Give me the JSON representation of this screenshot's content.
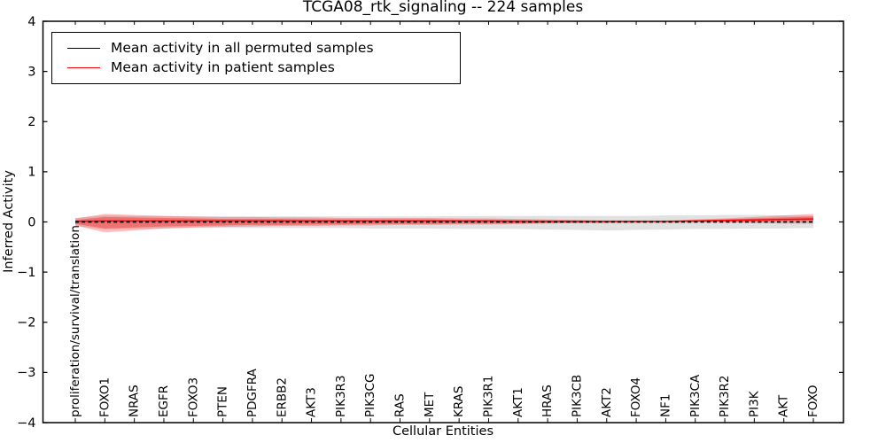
{
  "chart_data": {
    "type": "line",
    "title": "TCGA08_rtk_signaling -- 224 samples",
    "xlabel": "Cellular Entities",
    "ylabel": "Inferred Activity",
    "ylim": [
      -4,
      4
    ],
    "yticks": [
      4,
      3,
      2,
      1,
      0,
      -1,
      -2,
      -3,
      -4
    ],
    "grid": false,
    "legend": {
      "position": "upper left",
      "entries": [
        {
          "label": "Mean activity in all permuted samples",
          "color": "#000000"
        },
        {
          "label": "Mean activity in patient samples",
          "color": "#ff0000"
        }
      ]
    },
    "categories": [
      "proliferation/survival/translation",
      "FOXO1",
      "NRAS",
      "EGFR",
      "FOXO3",
      "PTEN",
      "PDGFRA",
      "ERBB2",
      "AKT3",
      "PIK3R3",
      "PIK3CG",
      "RAS",
      "MET",
      "KRAS",
      "PIK3R1",
      "AKT1",
      "HRAS",
      "PIK3CB",
      "AKT2",
      "FOXO4",
      "NF1",
      "PIK3CA",
      "PIK3R2",
      "PI3K",
      "AKT",
      "FOXO"
    ],
    "series": [
      {
        "name": "Mean activity in all permuted samples",
        "color": "#000000",
        "style": "dashed",
        "values": [
          0,
          0,
          0,
          0,
          0,
          0,
          0,
          0,
          0,
          0,
          0,
          0,
          0,
          0,
          0,
          0,
          0,
          0,
          0,
          0,
          0,
          0,
          0,
          0,
          0,
          0
        ]
      },
      {
        "name": "Mean activity in patient samples",
        "color": "#ff0000",
        "style": "solid",
        "values": [
          0.01,
          0.02,
          0.02,
          0.02,
          0.02,
          0.02,
          0.02,
          0.02,
          0.02,
          0.02,
          0.02,
          0.02,
          0.02,
          0.02,
          0.02,
          0.01,
          0.01,
          0.01,
          0.01,
          0.01,
          0.01,
          0.02,
          0.03,
          0.04,
          0.05,
          0.06
        ]
      }
    ],
    "bands": [
      {
        "name": "permuted-samples-range",
        "color": "rgba(120,120,120,0.22)",
        "hi": [
          0.08,
          0.13,
          0.12,
          0.12,
          0.11,
          0.11,
          0.11,
          0.11,
          0.11,
          0.11,
          0.11,
          0.11,
          0.11,
          0.12,
          0.12,
          0.12,
          0.12,
          0.12,
          0.12,
          0.12,
          0.13,
          0.13,
          0.14,
          0.14,
          0.13,
          0.12
        ],
        "lo": [
          -0.08,
          -0.15,
          -0.14,
          -0.13,
          -0.12,
          -0.12,
          -0.12,
          -0.12,
          -0.12,
          -0.12,
          -0.13,
          -0.13,
          -0.13,
          -0.14,
          -0.14,
          -0.14,
          -0.15,
          -0.16,
          -0.17,
          -0.16,
          -0.15,
          -0.14,
          -0.14,
          -0.13,
          -0.13,
          -0.12
        ]
      },
      {
        "name": "patient-samples-range-outer",
        "color": "rgba(255,0,0,0.25)",
        "hi": [
          0.07,
          0.16,
          0.14,
          0.12,
          0.11,
          0.1,
          0.1,
          0.09,
          0.09,
          0.08,
          0.08,
          0.08,
          0.08,
          0.07,
          0.07,
          0.06,
          0.05,
          0.04,
          0.03,
          0.03,
          0.03,
          0.05,
          0.07,
          0.1,
          0.13,
          0.16
        ],
        "lo": [
          -0.07,
          -0.21,
          -0.17,
          -0.13,
          -0.11,
          -0.1,
          -0.09,
          -0.08,
          -0.08,
          -0.07,
          -0.07,
          -0.06,
          -0.06,
          -0.05,
          -0.05,
          -0.04,
          -0.03,
          -0.02,
          -0.02,
          -0.01,
          -0.01,
          -0.01,
          -0.01,
          -0.02,
          -0.03,
          -0.03
        ],
        "comment": ""
      },
      {
        "name": "patient-samples-range-inner",
        "color": "rgba(255,0,0,0.32)",
        "hi": [
          0.04,
          0.1,
          0.09,
          0.08,
          0.07,
          0.06,
          0.06,
          0.06,
          0.05,
          0.05,
          0.05,
          0.05,
          0.05,
          0.04,
          0.04,
          0.04,
          0.03,
          0.03,
          0.02,
          0.02,
          0.02,
          0.03,
          0.05,
          0.07,
          0.09,
          0.11
        ],
        "lo": [
          -0.04,
          -0.13,
          -0.11,
          -0.09,
          -0.08,
          -0.07,
          -0.06,
          -0.06,
          -0.05,
          -0.05,
          -0.04,
          -0.04,
          -0.04,
          -0.03,
          -0.03,
          -0.03,
          -0.02,
          -0.02,
          -0.01,
          -0.01,
          0.0,
          0.0,
          0.0,
          0.0,
          0.01,
          0.01
        ]
      }
    ]
  }
}
